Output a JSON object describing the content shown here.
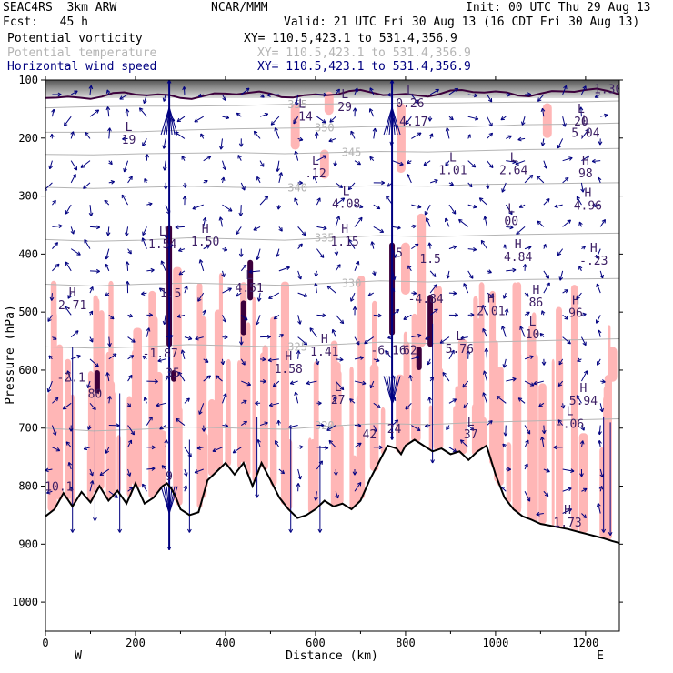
{
  "header": {
    "model": "SEAC4RS  3km ARW",
    "org": "NCAR/MMM",
    "init": "Init: 00 UTC Thu 29 Aug 13",
    "fcst": "Fcst:   45 h",
    "valid": "Valid: 21 UTC Fri 30 Aug 13 (16 CDT Fri 30 Aug 13)",
    "fields": [
      {
        "name": "Potential vorticity",
        "xy": "XY= 110.5,423.1 to 531.4,356.9",
        "color": "#000000"
      },
      {
        "name": "Potential temperature",
        "xy": "XY= 110.5,423.1 to 531.4,356.9",
        "color": "#b4b4b4"
      },
      {
        "name": "Horizontal wind speed",
        "xy": "XY= 110.5,423.1 to 531.4,356.9",
        "color": "#000080"
      }
    ]
  },
  "chart_data": {
    "type": "cross-section",
    "xlabel": "Distance (km)",
    "ylabel": "Pressure (hPa)",
    "xlim": [
      0,
      1275
    ],
    "ylim": [
      100,
      1050
    ],
    "x_ticks": [
      0,
      200,
      400,
      600,
      800,
      1000,
      1200
    ],
    "y_ticks": [
      100,
      200,
      300,
      400,
      500,
      600,
      700,
      800,
      900,
      1000
    ],
    "endpoints": {
      "left": "W",
      "right": "E"
    },
    "colors": {
      "terrain": "#000000",
      "pv_fill": "#ffb6b6",
      "theta": "#b4b4b4",
      "wind": "#000080",
      "labels": "#3c1e64"
    },
    "terrain": {
      "x": [
        0,
        20,
        40,
        60,
        80,
        100,
        120,
        140,
        160,
        180,
        200,
        220,
        240,
        260,
        270,
        280,
        290,
        300,
        320,
        340,
        360,
        380,
        400,
        420,
        440,
        460,
        480,
        500,
        520,
        540,
        560,
        580,
        600,
        620,
        640,
        660,
        680,
        700,
        720,
        740,
        760,
        780,
        790,
        800,
        820,
        840,
        860,
        880,
        900,
        920,
        940,
        960,
        980,
        1000,
        1020,
        1040,
        1060,
        1080,
        1100,
        1120,
        1140,
        1160,
        1180,
        1200,
        1220,
        1240,
        1260,
        1275
      ],
      "p": [
        852,
        840,
        812,
        835,
        810,
        828,
        800,
        825,
        808,
        830,
        795,
        830,
        820,
        800,
        795,
        805,
        820,
        840,
        850,
        845,
        790,
        775,
        760,
        780,
        760,
        800,
        760,
        790,
        820,
        840,
        855,
        850,
        840,
        825,
        835,
        830,
        840,
        825,
        790,
        760,
        730,
        735,
        745,
        730,
        720,
        730,
        740,
        735,
        745,
        740,
        755,
        740,
        730,
        780,
        820,
        840,
        852,
        858,
        865,
        868,
        871,
        874,
        878,
        882,
        886,
        890,
        895,
        898
      ]
    },
    "theta_isolines": [
      {
        "label": "355",
        "p": [
          148,
          146,
          145,
          145,
          144,
          142,
          141,
          140,
          140,
          139,
          138,
          138,
          136
        ]
      },
      {
        "label": "350",
        "p": [
          190,
          190,
          189,
          186,
          184,
          183,
          182,
          180,
          182,
          180,
          177,
          176,
          174
        ]
      },
      {
        "label": "345",
        "p": [
          228,
          229,
          227,
          226,
          225,
          227,
          225,
          223,
          224,
          222,
          220,
          219,
          218
        ]
      },
      {
        "label": "340",
        "p": [
          285,
          287,
          285,
          283,
          285,
          286,
          284,
          282,
          283,
          280,
          279,
          278,
          277
        ]
      },
      {
        "label": "335",
        "p": [
          375,
          378,
          376,
          372,
          374,
          376,
          372,
          368,
          370,
          368,
          366,
          365,
          364
        ]
      },
      {
        "label": "330",
        "p": [
          452,
          455,
          452,
          450,
          452,
          454,
          450,
          446,
          448,
          446,
          444,
          443,
          442
        ]
      },
      {
        "label": "325",
        "p": [
          560,
          562,
          560,
          556,
          558,
          560,
          556,
          552,
          554,
          552,
          550,
          548,
          546
        ]
      },
      {
        "label": "320",
        "p": [
          700,
          705,
          702,
          698,
          700,
          702,
          696,
          692,
          694,
          690,
          688,
          686,
          684
        ]
      }
    ],
    "pv_extrema": [
      {
        "label": "L",
        "value": "19",
        "x": 185,
        "p": 210
      },
      {
        "label": "L",
        "value": "1.54",
        "x": 260,
        "p": 390
      },
      {
        "label": "H",
        "value": "1.50",
        "x": 355,
        "p": 385
      },
      {
        "label": "",
        "value": "1.5",
        "x": 278,
        "p": 475
      },
      {
        "label": "H",
        "value": "2.71",
        "x": 60,
        "p": 495
      },
      {
        "label": "",
        "value": "-1.87",
        "x": 255,
        "p": 578
      },
      {
        "label": "",
        "value": "35",
        "x": 283,
        "p": 612
      },
      {
        "label": "L",
        "value": "4.51",
        "x": 453,
        "p": 465
      },
      {
        "label": "H",
        "value": "1.58",
        "x": 540,
        "p": 605
      },
      {
        "label": "H",
        "value": "1.41",
        "x": 620,
        "p": 575
      },
      {
        "label": "L",
        "value": "27",
        "x": 650,
        "p": 658
      },
      {
        "label": "L",
        "value": ".14",
        "x": 570,
        "p": 170
      },
      {
        "label": "L",
        "value": ".12",
        "x": 600,
        "p": 268
      },
      {
        "label": "L",
        "value": "29",
        "x": 665,
        "p": 153
      },
      {
        "label": "L",
        "value": "4.08",
        "x": 668,
        "p": 320
      },
      {
        "label": "H",
        "value": "1.15",
        "x": 665,
        "p": 385
      },
      {
        "label": "L",
        "value": "0.26",
        "x": 810,
        "p": 147
      },
      {
        "label": "",
        "value": "4.17",
        "x": 818,
        "p": 178
      },
      {
        "label": "L",
        "value": "1.01",
        "x": 905,
        "p": 262
      },
      {
        "label": "",
        "value": "5",
        "x": 786,
        "p": 405
      },
      {
        "label": "",
        "value": "1.5",
        "x": 855,
        "p": 415
      },
      {
        "label": "",
        "value": "-4.84",
        "x": 845,
        "p": 484
      },
      {
        "label": "",
        "value": "-6.16",
        "x": 762,
        "p": 573
      },
      {
        "label": "",
        "value": "62",
        "x": 810,
        "p": 573
      },
      {
        "label": "L",
        "value": "5.76",
        "x": 920,
        "p": 570
      },
      {
        "label": "H",
        "value": "2.01",
        "x": 990,
        "p": 505
      },
      {
        "label": "L",
        "value": "2.64",
        "x": 1040,
        "p": 262
      },
      {
        "label": "L",
        "value": "00",
        "x": 1035,
        "p": 350
      },
      {
        "label": "H",
        "value": "4.84",
        "x": 1050,
        "p": 412
      },
      {
        "label": "H",
        "value": "98",
        "x": 1200,
        "p": 268
      },
      {
        "label": "H",
        "value": "4.96",
        "x": 1205,
        "p": 323
      },
      {
        "label": "L",
        "value": "5.04",
        "x": 1200,
        "p": 198
      },
      {
        "label": "L",
        "value": "20",
        "x": 1190,
        "p": 178
      },
      {
        "label": "H",
        "value": "-.23",
        "x": 1218,
        "p": 418
      },
      {
        "label": "H",
        "value": "86",
        "x": 1090,
        "p": 490
      },
      {
        "label": "L",
        "value": "10",
        "x": 1082,
        "p": 545
      },
      {
        "label": "H",
        "value": "96",
        "x": 1178,
        "p": 508
      },
      {
        "label": "H",
        "value": "5.94",
        "x": 1195,
        "p": 660
      },
      {
        "label": "L",
        "value": "-.06",
        "x": 1165,
        "p": 700
      },
      {
        "label": "H",
        "value": "1.73",
        "x": 1160,
        "p": 870
      },
      {
        "label": "",
        "value": "80",
        "x": 110,
        "p": 648
      },
      {
        "label": "",
        "value": "-2.1",
        "x": 57,
        "p": 620
      },
      {
        "label": "",
        "value": "10.1",
        "x": 30,
        "p": 808
      },
      {
        "label": "",
        "value": "9",
        "x": 275,
        "p": 790
      },
      {
        "label": "",
        "value": "42",
        "x": 720,
        "p": 718
      },
      {
        "label": "",
        "value": "24",
        "x": 775,
        "p": 708
      },
      {
        "label": "L",
        "value": "37",
        "x": 945,
        "p": 718
      },
      {
        "label": "",
        "value": "1.30",
        "x": 1250,
        "p": 123
      }
    ],
    "jets": [
      {
        "x": 275,
        "p_top": 100,
        "p_bottom": 910
      },
      {
        "x": 770,
        "p_top": 100,
        "p_bottom": 720
      }
    ]
  }
}
